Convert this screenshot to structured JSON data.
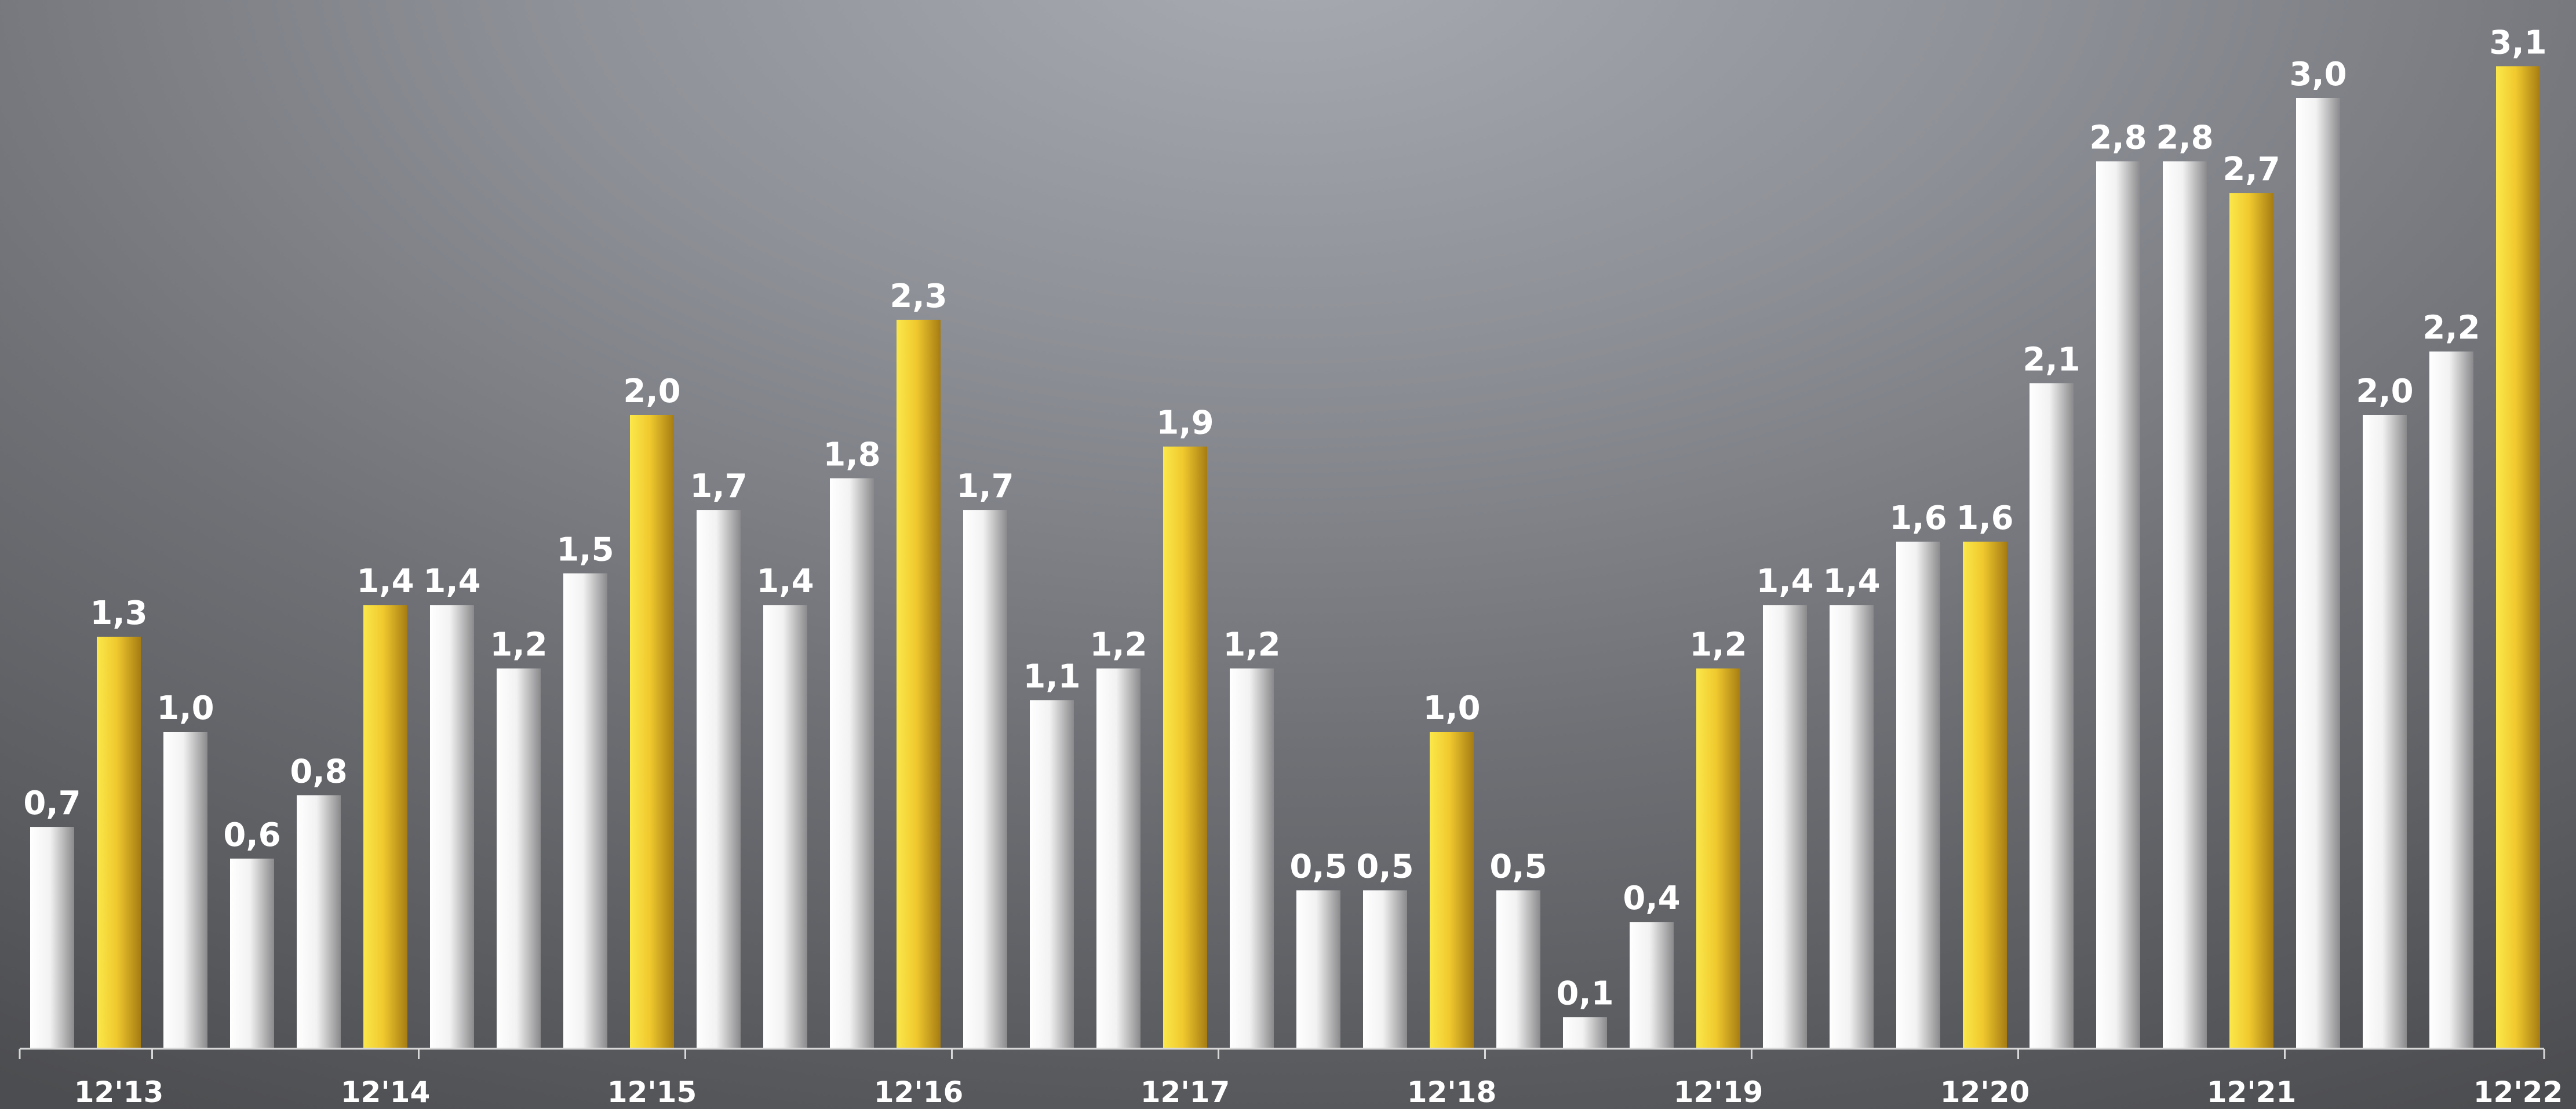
{
  "chart_data": {
    "type": "bar",
    "title": "",
    "xlabel": "",
    "ylabel": "",
    "ylim": [
      0,
      3.3
    ],
    "grid": false,
    "legend": "none",
    "tick_labels": [
      "12'13",
      "12'14",
      "12'15",
      "12'16",
      "12'17",
      "12'18",
      "12'19",
      "12'20",
      "12'21",
      "12'22"
    ],
    "values": [
      0.7,
      1.3,
      1.0,
      0.6,
      0.8,
      1.4,
      1.4,
      1.2,
      1.5,
      2.0,
      1.7,
      1.4,
      1.8,
      2.3,
      1.7,
      1.1,
      1.2,
      1.9,
      1.2,
      0.5,
      0.5,
      1.0,
      0.5,
      0.1,
      0.4,
      1.2,
      1.4,
      1.4,
      1.6,
      1.6,
      2.1,
      2.8,
      2.8,
      2.7,
      3.0,
      2.0,
      2.2,
      3.1
    ],
    "value_labels": [
      "0,7",
      "1,3",
      "1,0",
      "0,6",
      "0,8",
      "1,4",
      "1,4",
      "1,2",
      "1,5",
      "2,0",
      "1,7",
      "1,4",
      "1,8",
      "2,3",
      "1,7",
      "1,1",
      "1,2",
      "1,9",
      "1,2",
      "0,5",
      "0,5",
      "1,0",
      "0,5",
      "0,1",
      "0,4",
      "1,2",
      "1,4",
      "1,4",
      "1,6",
      "1,6",
      "2,1",
      "2,8",
      "2,8",
      "2,7",
      "3,0",
      "2,0",
      "2,2",
      "3,1"
    ],
    "highlight_indices": [
      1,
      5,
      9,
      13,
      17,
      21,
      25,
      29,
      33,
      37
    ],
    "colors": {
      "bar": "#e6e6e6",
      "highlight": "#e8c22c",
      "axis": "#d8d8d8",
      "text": "#ffffff"
    }
  }
}
